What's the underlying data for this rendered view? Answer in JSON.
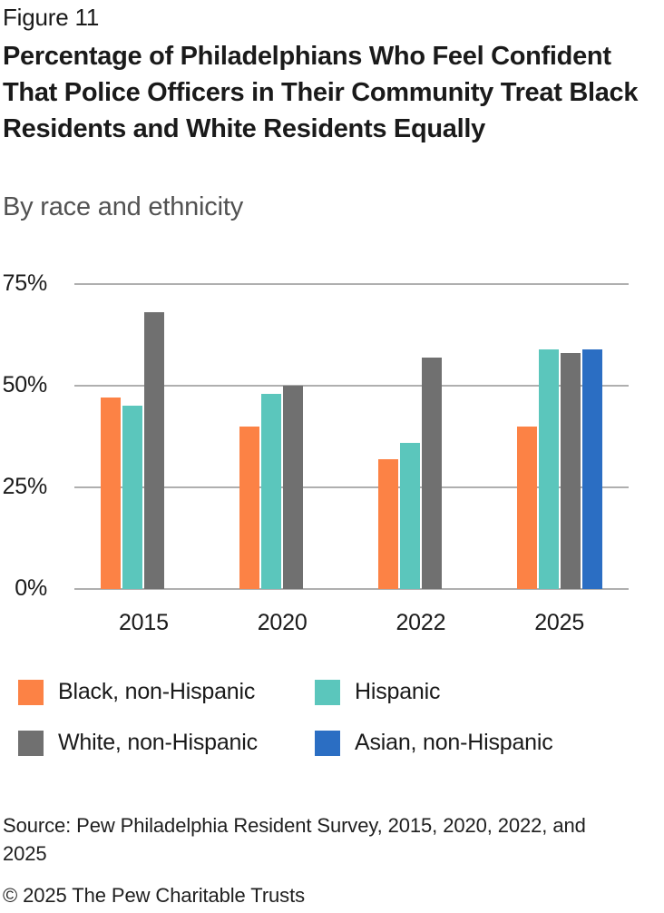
{
  "figure_label": "Figure 11",
  "title": "Percentage of Philadelphians Who Feel Confident That Police Officers in Their Community Treat Black Residents and White Residents Equally",
  "subtitle": "By race and ethnicity",
  "chart_data": {
    "type": "bar",
    "categories": [
      "2015",
      "2020",
      "2022",
      "2025"
    ],
    "series": [
      {
        "name": "Black, non-Hispanic",
        "color": "#FC8245",
        "values": [
          47,
          40,
          32,
          40
        ]
      },
      {
        "name": "Hispanic",
        "color": "#5BC6BC",
        "values": [
          45,
          48,
          36,
          59
        ]
      },
      {
        "name": "White, non-Hispanic",
        "color": "#707070",
        "values": [
          68,
          50,
          57,
          58
        ]
      },
      {
        "name": "Asian, non-Hispanic",
        "color": "#2B6EC3",
        "values": [
          null,
          null,
          null,
          59
        ]
      }
    ],
    "title": "Percentage of Philadelphians Who Feel Confident That Police Officers in Their Community Treat Black Residents and White Residents Equally",
    "subtitle": "By race and ethnicity",
    "xlabel": "",
    "ylabel": "",
    "ylim": [
      0,
      75
    ],
    "y_ticks": [
      0,
      25,
      50,
      75
    ],
    "y_tick_labels": [
      "0%",
      "25%",
      "50%",
      "75%"
    ],
    "grid": "horizontal",
    "gridline_color": "#afafaf",
    "legend_position": "bottom"
  },
  "footer": {
    "source": "Source: Pew Philadelphia Resident Survey, 2015, 2020, 2022, and 2025",
    "copyright": "© 2025 The Pew Charitable Trusts"
  }
}
